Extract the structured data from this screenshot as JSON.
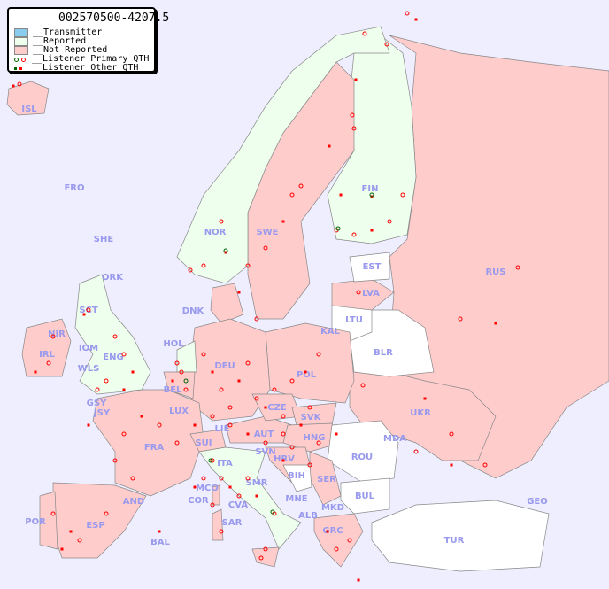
{
  "title": "002570500-4207.5",
  "legend": [
    {
      "label": "__Transmitter",
      "color": "#88ccee",
      "kind": "swatch"
    },
    {
      "label": "__Reported",
      "color": "#eeffee",
      "kind": "swatch"
    },
    {
      "label": "__Not Reported",
      "color": "#ffcccc",
      "kind": "swatch"
    },
    {
      "label": "__Listener Primary QTH",
      "colors": [
        "#006600",
        "#ff0000"
      ],
      "kind": "circle"
    },
    {
      "label": "__Listener Other QTH",
      "colors": [
        "#006600",
        "#ff0000"
      ],
      "kind": "square"
    }
  ],
  "colors": {
    "sea": "#eeeeff",
    "not_reported": "#ffcccc",
    "reported": "#eeffee",
    "no_data": "#ffffff",
    "label": "#9999ee",
    "listener": "#ff0000",
    "listener_reported": "#006600"
  },
  "countries": [
    {
      "code": "ISL",
      "status": "not_reported"
    },
    {
      "code": "FRO",
      "status": "none"
    },
    {
      "code": "SHE",
      "status": "none"
    },
    {
      "code": "ORK",
      "status": "none"
    },
    {
      "code": "NOR",
      "status": "reported"
    },
    {
      "code": "SWE",
      "status": "not_reported"
    },
    {
      "code": "FIN",
      "status": "reported"
    },
    {
      "code": "EST",
      "status": "none"
    },
    {
      "code": "LVA",
      "status": "not_reported"
    },
    {
      "code": "LTU",
      "status": "none"
    },
    {
      "code": "KAL",
      "status": "none"
    },
    {
      "code": "RUS",
      "status": "not_reported"
    },
    {
      "code": "DNK",
      "status": "not_reported"
    },
    {
      "code": "HOL",
      "status": "reported"
    },
    {
      "code": "BLR",
      "status": "none"
    },
    {
      "code": "POL",
      "status": "not_reported"
    },
    {
      "code": "DEU",
      "status": "not_reported"
    },
    {
      "code": "BEL",
      "status": "not_reported"
    },
    {
      "code": "LUX",
      "status": "not_reported"
    },
    {
      "code": "GSY",
      "status": "none"
    },
    {
      "code": "JSY",
      "status": "none"
    },
    {
      "code": "IRL",
      "status": "not_reported"
    },
    {
      "code": "NIR",
      "status": "not_reported"
    },
    {
      "code": "SCT",
      "status": "reported"
    },
    {
      "code": "IOM",
      "status": "none"
    },
    {
      "code": "WLS",
      "status": "reported"
    },
    {
      "code": "ENG",
      "status": "reported"
    },
    {
      "code": "UKR",
      "status": "not_reported"
    },
    {
      "code": "CZE",
      "status": "not_reported"
    },
    {
      "code": "SVK",
      "status": "not_reported"
    },
    {
      "code": "AUT",
      "status": "not_reported"
    },
    {
      "code": "HNG",
      "status": "not_reported"
    },
    {
      "code": "MDA",
      "status": "none"
    },
    {
      "code": "FRA",
      "status": "not_reported"
    },
    {
      "code": "SUI",
      "status": "not_reported"
    },
    {
      "code": "LIE",
      "status": "not_reported"
    },
    {
      "code": "SVN",
      "status": "not_reported"
    },
    {
      "code": "HRV",
      "status": "not_reported"
    },
    {
      "code": "ITA",
      "status": "reported"
    },
    {
      "code": "ROU",
      "status": "none"
    },
    {
      "code": "BIH",
      "status": "none"
    },
    {
      "code": "SER",
      "status": "not_reported"
    },
    {
      "code": "MCO",
      "status": "none"
    },
    {
      "code": "SMR",
      "status": "none"
    },
    {
      "code": "COR",
      "status": "not_reported"
    },
    {
      "code": "CVA",
      "status": "none"
    },
    {
      "code": "BUL",
      "status": "none"
    },
    {
      "code": "MNE",
      "status": "none"
    },
    {
      "code": "MKD",
      "status": "none"
    },
    {
      "code": "ALB",
      "status": "none"
    },
    {
      "code": "GEO",
      "status": "none"
    },
    {
      "code": "AND",
      "status": "none"
    },
    {
      "code": "POR",
      "status": "not_reported"
    },
    {
      "code": "ESP",
      "status": "not_reported"
    },
    {
      "code": "SAR",
      "status": "not_reported"
    },
    {
      "code": "BAL",
      "status": "not_reported"
    },
    {
      "code": "GRC",
      "status": "not_reported"
    },
    {
      "code": "TUR",
      "status": "none"
    }
  ]
}
